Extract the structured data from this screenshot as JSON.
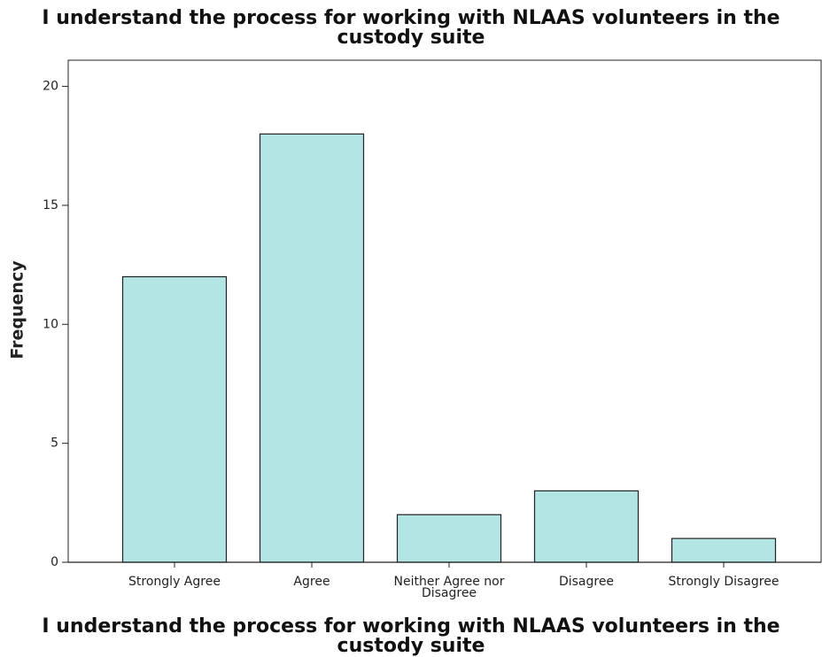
{
  "chart_data": {
    "type": "bar",
    "title": "I understand the process for working with NLAAS volunteers in the custody suite",
    "x_label": "I understand the process for working with NLAAS volunteers in the custody suite",
    "y_label": "Frequency",
    "categories": [
      "Strongly Agree",
      "Agree",
      "Neither Agree nor Disagree",
      "Disagree",
      "Strongly Disagree"
    ],
    "values": [
      12,
      18,
      2,
      3,
      1
    ],
    "color": "#b3e5e5",
    "ylim": [
      0,
      21.1
    ],
    "yticks": [
      0,
      5,
      10,
      15,
      20
    ],
    "grid": false
  }
}
